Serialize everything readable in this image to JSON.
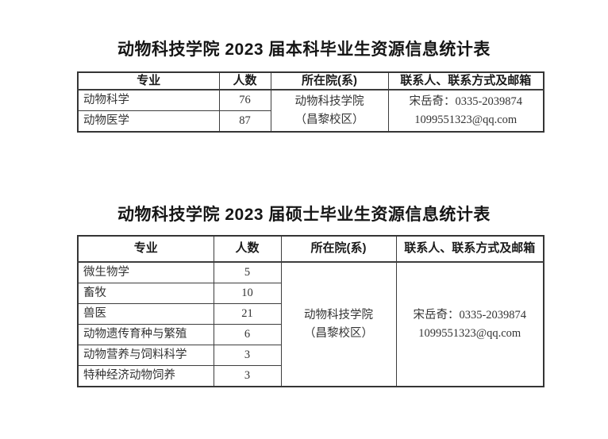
{
  "colors": {
    "page_background": "#ffffff",
    "text": "#333333",
    "heading_text": "#161616",
    "border": "#3d3d3d"
  },
  "undergrad_table": {
    "title": "动物科技学院 2023 届本科毕业生资源信息统计表",
    "headers": {
      "major": "专业",
      "count": "人数",
      "department": "所在院(系)",
      "contact": "联系人、联系方式及邮箱"
    },
    "rows": [
      {
        "major": "动物科学",
        "count": "76"
      },
      {
        "major": "动物医学",
        "count": "87"
      }
    ],
    "department_line1": "动物科技学院",
    "department_line2": "（昌黎校区）",
    "contact_line1": "宋岳奇：0335-2039874",
    "contact_line2": "1099551323@qq.com"
  },
  "master_table": {
    "title": "动物科技学院 2023 届硕士毕业生资源信息统计表",
    "headers": {
      "major": "专业",
      "count": "人数",
      "department": "所在院(系)",
      "contact": "联系人、联系方式及邮箱"
    },
    "rows": [
      {
        "major": "微生物学",
        "count": "5"
      },
      {
        "major": "畜牧",
        "count": "10"
      },
      {
        "major": "兽医",
        "count": "21"
      },
      {
        "major": "动物遗传育种与繁殖",
        "count": "6"
      },
      {
        "major": "动物营养与饲料科学",
        "count": "3"
      },
      {
        "major": "特种经济动物饲养",
        "count": "3"
      }
    ],
    "department_line1": "动物科技学院",
    "department_line2": "（昌黎校区）",
    "contact_line1": "宋岳奇：0335-2039874",
    "contact_line2": "1099551323@qq.com"
  }
}
